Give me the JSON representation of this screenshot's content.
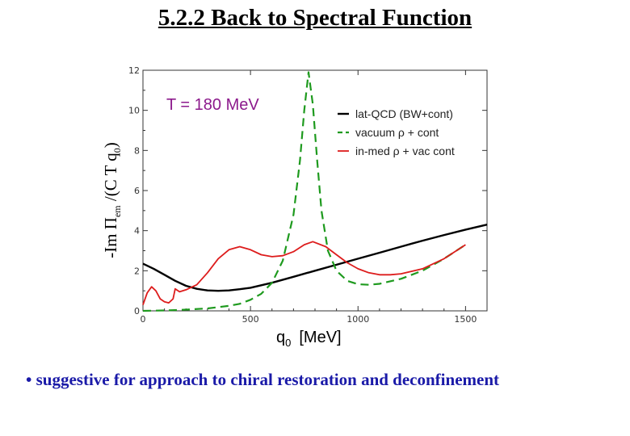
{
  "slide": {
    "title": "5.2.2  Back to Spectral Function",
    "bullet_mark": "•",
    "bullet_text": "suggestive for approach to chiral restoration and deconfinement"
  },
  "colors": {
    "title": "#000000",
    "bullet": "#1a1aa8",
    "lat_qcd": "#000000",
    "vacuum": "#1e9a1e",
    "in_med": "#dd1c1c",
    "annotation": "#8c1a8c"
  },
  "chart_data": {
    "type": "line",
    "title": "",
    "annotation": "T = 180 MeV",
    "ylabel": {
      "prefix": "-Im Π",
      "sub": "em",
      "suffix": " /(C T q",
      "sub2": "0",
      "end": ")"
    },
    "xlabel": {
      "main": "q",
      "sub": "0",
      "unit": "[MeV]"
    },
    "xlim": [
      0,
      1600
    ],
    "ylim": [
      0,
      12
    ],
    "xticks": [
      0,
      500,
      1000,
      1500
    ],
    "yticks": [
      0,
      2,
      4,
      6,
      8,
      10,
      12
    ],
    "legend_position": "top-right",
    "series": [
      {
        "name": "lat-QCD (BW+cont)",
        "style": "solid-thick",
        "color": "#000000",
        "points": [
          [
            0,
            2.35
          ],
          [
            50,
            2.1
          ],
          [
            100,
            1.8
          ],
          [
            150,
            1.5
          ],
          [
            200,
            1.25
          ],
          [
            250,
            1.1
          ],
          [
            300,
            1.02
          ],
          [
            350,
            1.0
          ],
          [
            400,
            1.02
          ],
          [
            450,
            1.08
          ],
          [
            500,
            1.15
          ],
          [
            600,
            1.4
          ],
          [
            700,
            1.7
          ],
          [
            800,
            2.0
          ],
          [
            900,
            2.3
          ],
          [
            1000,
            2.6
          ],
          [
            1100,
            2.9
          ],
          [
            1200,
            3.2
          ],
          [
            1300,
            3.5
          ],
          [
            1400,
            3.78
          ],
          [
            1500,
            4.05
          ],
          [
            1600,
            4.3
          ]
        ]
      },
      {
        "name": "vacuum ρ + cont",
        "style": "dashed",
        "color": "#1e9a1e",
        "points": [
          [
            0,
            0.0
          ],
          [
            100,
            0.02
          ],
          [
            200,
            0.06
          ],
          [
            300,
            0.12
          ],
          [
            400,
            0.25
          ],
          [
            450,
            0.35
          ],
          [
            500,
            0.55
          ],
          [
            550,
            0.85
          ],
          [
            600,
            1.4
          ],
          [
            650,
            2.5
          ],
          [
            700,
            4.8
          ],
          [
            730,
            7.5
          ],
          [
            750,
            10.0
          ],
          [
            770,
            11.9
          ],
          [
            790,
            10.3
          ],
          [
            810,
            7.5
          ],
          [
            830,
            5.0
          ],
          [
            860,
            3.0
          ],
          [
            900,
            2.0
          ],
          [
            950,
            1.5
          ],
          [
            1000,
            1.33
          ],
          [
            1050,
            1.3
          ],
          [
            1100,
            1.35
          ],
          [
            1200,
            1.6
          ],
          [
            1300,
            2.0
          ],
          [
            1400,
            2.6
          ],
          [
            1500,
            3.3
          ]
        ]
      },
      {
        "name": "in-med ρ + vac cont",
        "style": "solid",
        "color": "#dd1c1c",
        "points": [
          [
            0,
            0.3
          ],
          [
            20,
            0.9
          ],
          [
            40,
            1.2
          ],
          [
            60,
            1.0
          ],
          [
            80,
            0.6
          ],
          [
            100,
            0.45
          ],
          [
            120,
            0.4
          ],
          [
            140,
            0.6
          ],
          [
            150,
            1.1
          ],
          [
            170,
            0.95
          ],
          [
            200,
            1.05
          ],
          [
            250,
            1.3
          ],
          [
            300,
            1.9
          ],
          [
            350,
            2.6
          ],
          [
            400,
            3.05
          ],
          [
            450,
            3.2
          ],
          [
            500,
            3.05
          ],
          [
            550,
            2.8
          ],
          [
            600,
            2.7
          ],
          [
            650,
            2.75
          ],
          [
            700,
            2.95
          ],
          [
            750,
            3.3
          ],
          [
            790,
            3.45
          ],
          [
            850,
            3.2
          ],
          [
            900,
            2.8
          ],
          [
            950,
            2.4
          ],
          [
            1000,
            2.1
          ],
          [
            1050,
            1.9
          ],
          [
            1100,
            1.8
          ],
          [
            1150,
            1.8
          ],
          [
            1200,
            1.85
          ],
          [
            1300,
            2.1
          ],
          [
            1400,
            2.6
          ],
          [
            1500,
            3.3
          ]
        ]
      }
    ]
  }
}
